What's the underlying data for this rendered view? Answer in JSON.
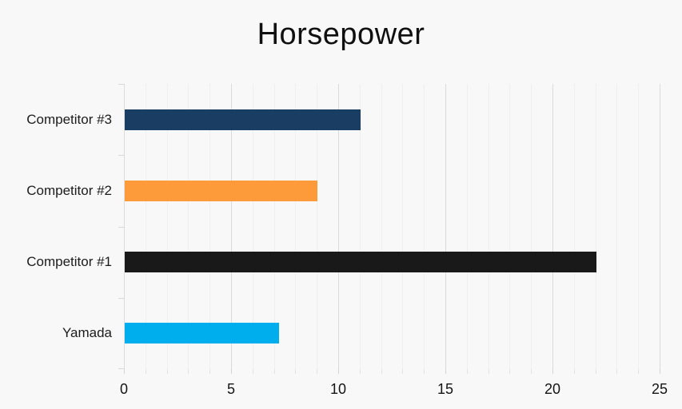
{
  "title": "Horsepower",
  "chart_data": {
    "type": "bar",
    "orientation": "horizontal",
    "title": "Horsepower",
    "categories": [
      "Competitor #3",
      "Competitor #2",
      "Competitor #1",
      "Yamada"
    ],
    "values": [
      11,
      9,
      22,
      7.2
    ],
    "bar_colors": [
      "#1a3e63",
      "#fd9a3a",
      "#191919",
      "#00aeee"
    ],
    "xlabel": "",
    "ylabel": "",
    "xlim": [
      0,
      25
    ],
    "x_ticks": [
      0,
      5,
      10,
      15,
      20,
      25
    ],
    "minor_grid_step": 1,
    "grid": "vertical, minor every 1 unit, major every 5 units",
    "legend": "none",
    "background_color": "#f8f8f8",
    "gridline_minor_color": "#efefef",
    "gridline_major_color": "#dadada",
    "axis_line_color": "#dcdcdc",
    "text_color": "#1c1c1c"
  }
}
